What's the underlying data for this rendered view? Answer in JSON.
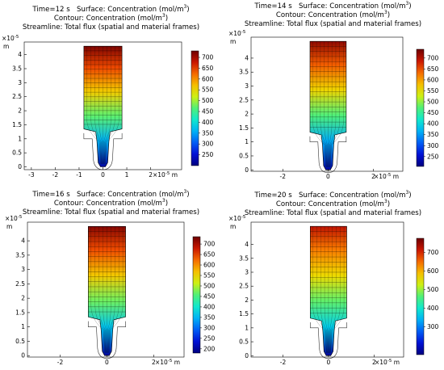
{
  "chart_data": [
    {
      "type": "heatmap",
      "time_label": "Time=12 s",
      "surface_label": "Surface: Concentration (mol/m",
      "contour_label": "Contour: Concentration (mol/m",
      "streamline_label": "Streamline: Total flux (spatial and material frames)",
      "unit_exp": "3",
      "axis_scale": "×10",
      "axis_scale_exp": "-5",
      "axis_unit": "m",
      "x_ticks": [
        "-3",
        "-2",
        "-1",
        "0",
        "1",
        "2"
      ],
      "y_ticks": [
        "0",
        "0.5",
        "1",
        "1.5",
        "2",
        "2.5",
        "3",
        "3.5",
        "4"
      ],
      "colorbar_ticks": [
        250,
        300,
        350,
        400,
        450,
        500,
        550,
        600,
        650,
        700
      ],
      "colorbar_range": [
        200,
        730
      ],
      "xlim": [
        -3.3,
        3.3
      ],
      "ylim": [
        -0.1,
        4.45
      ]
    },
    {
      "type": "heatmap",
      "time_label": "Time=14 s",
      "surface_label": "Surface: Concentration (mol/m",
      "contour_label": "Contour: Concentration (mol/m",
      "streamline_label": "Streamline: Total flux (spatial and material frames)",
      "unit_exp": "3",
      "axis_scale": "×10",
      "axis_scale_exp": "-5",
      "axis_unit": "m",
      "x_ticks": [
        "-2",
        "0",
        "2"
      ],
      "y_ticks": [
        "0",
        "0.5",
        "1",
        "1.5",
        "2",
        "2.5",
        "3",
        "3.5",
        "4"
      ],
      "colorbar_ticks": [
        250,
        300,
        350,
        400,
        450,
        500,
        550,
        600,
        650,
        700
      ],
      "colorbar_range": [
        205,
        740
      ],
      "xlim": [
        -3.4,
        3.3
      ],
      "ylim": [
        -0.05,
        4.75
      ]
    },
    {
      "type": "heatmap",
      "time_label": "Time=16 s",
      "surface_label": "Surface: Concentration (mol/m",
      "contour_label": "Contour: Concentration (mol/m",
      "streamline_label": "Streamline: Total flux (spatial and material frames)",
      "unit_exp": "3",
      "axis_scale": "×10",
      "axis_scale_exp": "-5",
      "axis_unit": "m",
      "x_ticks": [
        "-2",
        "0",
        "2"
      ],
      "y_ticks": [
        "0",
        "0.5",
        "1",
        "1.5",
        "2",
        "2.5",
        "3",
        "3.5",
        "4"
      ],
      "colorbar_ticks": [
        200,
        250,
        300,
        350,
        400,
        450,
        500,
        550,
        600,
        650,
        700
      ],
      "colorbar_range": [
        180,
        735
      ],
      "xlim": [
        -3.4,
        3.3
      ],
      "ylim": [
        -0.05,
        4.65
      ]
    },
    {
      "type": "heatmap",
      "time_label": "Time=20 s",
      "surface_label": "Surface: Concentration (mol/m",
      "contour_label": "Contour: Concentration (mol/m",
      "streamline_label": "Streamline: Total flux (spatial and material frames)",
      "unit_exp": "3",
      "axis_scale": "×10",
      "axis_scale_exp": "-5",
      "axis_unit": "m",
      "x_ticks": [
        "-2",
        "0",
        "2"
      ],
      "y_ticks": [
        "0",
        "0.5",
        "1",
        "1.5",
        "2",
        "2.5",
        "3",
        "3.5",
        "4"
      ],
      "colorbar_ticks": [
        300,
        400,
        500,
        600,
        700
      ],
      "colorbar_range": [
        150,
        775
      ],
      "xlim": [
        -3.4,
        3.3
      ],
      "ylim": [
        -0.05,
        4.8
      ]
    }
  ]
}
